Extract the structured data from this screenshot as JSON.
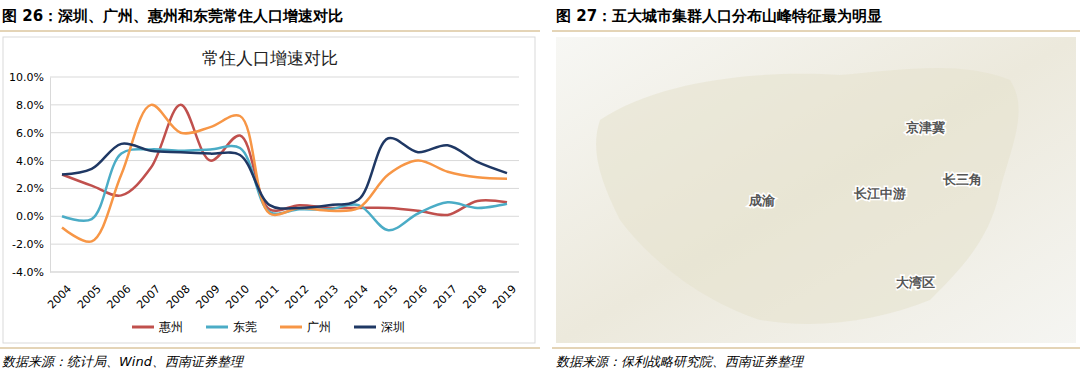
{
  "chart_data": {
    "type": "line",
    "title": "常住人口增速对比",
    "categories": [
      "2004",
      "2005",
      "2006",
      "2007",
      "2008",
      "2009",
      "2010",
      "2011",
      "2012",
      "2013",
      "2014",
      "2015",
      "2016",
      "2017",
      "2018",
      "2019"
    ],
    "series": [
      {
        "name": "惠州",
        "color": "#c0504d",
        "line_style": "solid",
        "values": [
          3.0,
          2.2,
          1.5,
          3.5,
          8.0,
          4.0,
          5.8,
          0.5,
          0.8,
          0.6,
          0.6,
          0.6,
          0.4,
          0.1,
          1.1,
          1.0
        ]
      },
      {
        "name": "东莞",
        "color": "#4bacc6",
        "line_style": "solid",
        "values": [
          0.0,
          -0.2,
          4.5,
          4.8,
          4.7,
          4.8,
          4.9,
          0.3,
          0.5,
          0.5,
          0.8,
          -1.0,
          0.2,
          1.0,
          0.6,
          0.9
        ]
      },
      {
        "name": "广州",
        "color": "#f79646",
        "line_style": "solid",
        "values": [
          -0.8,
          -1.8,
          3.0,
          8.0,
          6.0,
          6.4,
          7.2,
          0.2,
          0.6,
          0.4,
          0.6,
          3.0,
          4.0,
          3.2,
          2.8,
          2.7
        ]
      },
      {
        "name": "深圳",
        "color": "#1f3864",
        "line_style": "solid",
        "values": [
          3.0,
          3.4,
          5.2,
          4.7,
          4.6,
          4.5,
          4.4,
          0.8,
          0.6,
          0.8,
          1.2,
          5.6,
          4.6,
          5.1,
          3.9,
          3.1
        ]
      }
    ],
    "ylim": [
      -4,
      10
    ],
    "yticks": [
      {
        "value": -4,
        "label": "-4.0%"
      },
      {
        "value": -2,
        "label": "-2.0%"
      },
      {
        "value": 0,
        "label": "0.0%"
      },
      {
        "value": 2,
        "label": "2.0%"
      },
      {
        "value": 4,
        "label": "4.0%"
      },
      {
        "value": 6,
        "label": "6.0%"
      },
      {
        "value": 8,
        "label": "8.0%"
      },
      {
        "value": 10,
        "label": "10.0%"
      }
    ],
    "grid": true,
    "legend": "bottom"
  },
  "figures": [
    {
      "caption": "图 26：深圳、广州、惠州和东莞常住人口增速对比",
      "source": "数据来源：统计局、Wind、西南证券整理"
    },
    {
      "caption": "图 27：五大城市集群人口分布山峰特征最为明显",
      "source": "数据来源：保利战略研究院、西南证券整理",
      "regions": [
        "京津冀",
        "长三角",
        "长江中游",
        "成渝",
        "大湾区"
      ]
    }
  ]
}
